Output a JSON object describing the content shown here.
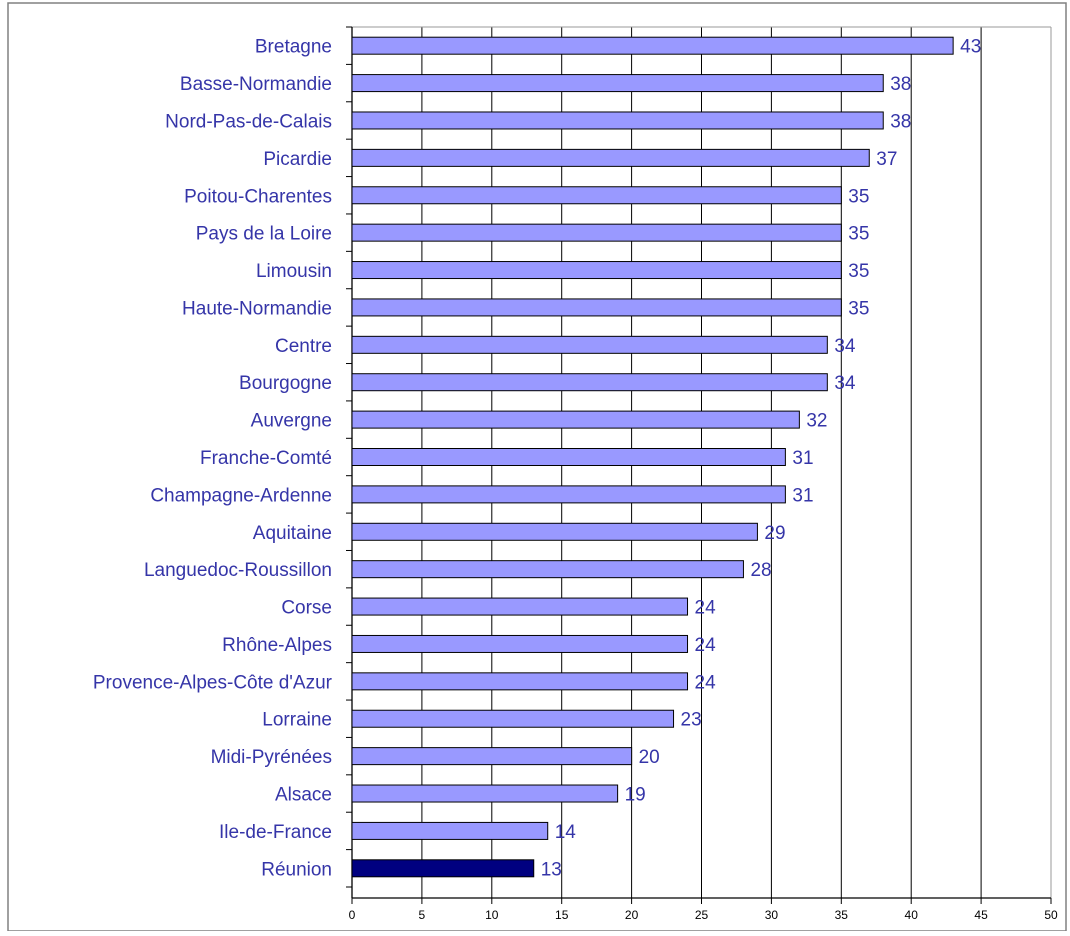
{
  "chart_data": {
    "type": "bar",
    "orientation": "horizontal",
    "categories": [
      "Bretagne",
      "Basse-Normandie",
      "Nord-Pas-de-Calais",
      "Picardie",
      "Poitou-Charentes",
      "Pays de la Loire",
      "Limousin",
      "Haute-Normandie",
      "Centre",
      "Bourgogne",
      "Auvergne",
      "Franche-Comté",
      "Champagne-Ardenne",
      "Aquitaine",
      "Languedoc-Roussillon",
      "Corse",
      "Rhône-Alpes",
      "Provence-Alpes-Côte d'Azur",
      "Lorraine",
      "Midi-Pyrénées",
      "Alsace",
      "Ile-de-France",
      "Réunion"
    ],
    "values": [
      43,
      38,
      38,
      37,
      35,
      35,
      35,
      35,
      34,
      34,
      32,
      31,
      31,
      29,
      28,
      24,
      24,
      24,
      23,
      20,
      19,
      14,
      13
    ],
    "highlight_category": "Réunion",
    "xlim": [
      0,
      50
    ],
    "xticks": [
      0,
      5,
      10,
      15,
      20,
      25,
      30,
      35,
      40,
      45,
      50
    ],
    "grid": "vertical",
    "title": "",
    "xlabel": "",
    "ylabel": "",
    "colors": {
      "bar": "#9999ff",
      "bar_highlight": "#000080",
      "bar_border": "#000000",
      "label_text": "#3535a8",
      "grid": "#000000",
      "frame": "#808080"
    }
  }
}
